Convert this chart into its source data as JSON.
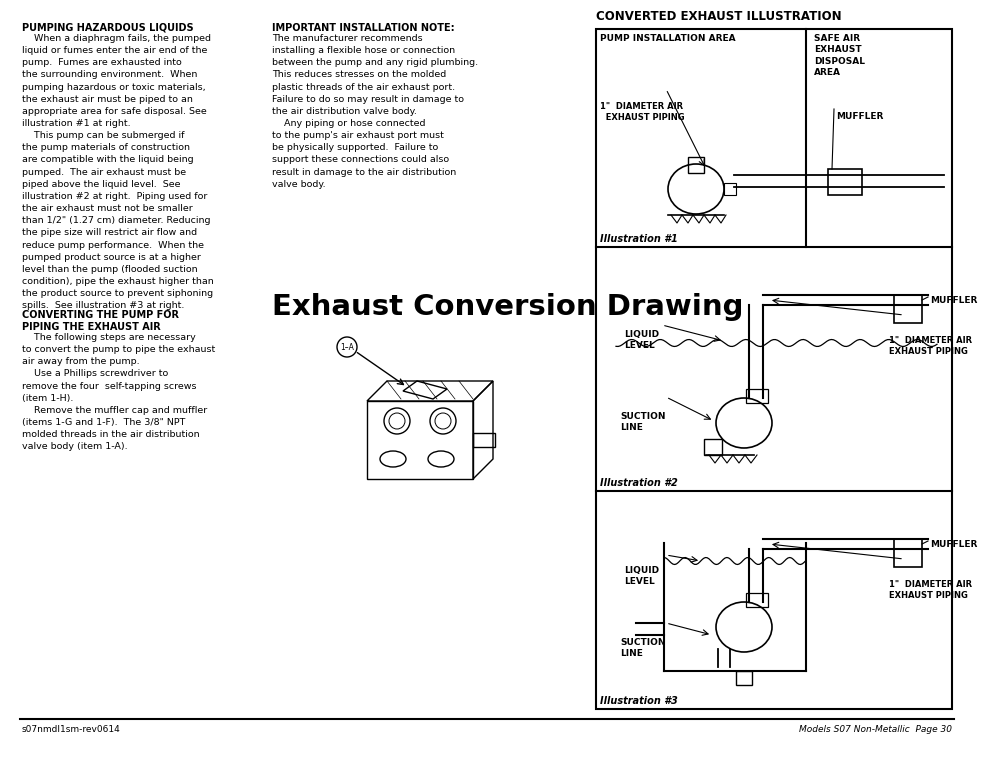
{
  "page_bg": "#ffffff",
  "title_main": "Exhaust Conversion Drawing",
  "section1_heading": "PUMPING HAZARDOUS LIQUIDS",
  "section1_body": "    When a diaphragm fails, the pumped\nliquid or fumes enter the air end of the\npump.  Fumes are exhausted into\nthe surrounding environment.  When\npumping hazardous or toxic materials,\nthe exhaust air must be piped to an\nappropriate area for safe disposal. See\nillustration #1 at right.\n    This pump can be submerged if\nthe pump materials of construction\nare compatible with the liquid being\npumped.  The air exhaust must be\npiped above the liquid level.  See\nillustration #2 at right.  Piping used for\nthe air exhaust must not be smaller\nthan 1/2\" (1.27 cm) diameter. Reducing\nthe pipe size will restrict air flow and\nreduce pump performance.  When the\npumped product source is at a higher\nlevel than the pump (flooded suction\ncondition), pipe the exhaust higher than\nthe product source to prevent siphoning\nspills.  See illustration #3 at right.",
  "section2_heading": "CONVERTING THE PUMP FOR\nPIPING THE EXHAUST AIR",
  "section2_body": "    The following steps are necessary\nto convert the pump to pipe the exhaust\nair away from the pump.\n    Use a Phillips screwdriver to\nremove the four  self-tapping screws\n(item 1-H).\n    Remove the muffler cap and muffler\n(items 1-G and 1-F).  The 3/8\" NPT\nmolded threads in the air distribution\nvalve body (item 1-A).",
  "section3_heading": "IMPORTANT INSTALLATION NOTE:",
  "section3_body": "The manufacturer recommends\ninstalling a flexible hose or connection\nbetween the pump and any rigid plumbing.\nThis reduces stresses on the molded\nplastic threads of the air exhaust port.\nFailure to do so may result in damage to\nthe air distribution valve body.\n    Any piping or hose connected\nto the pump's air exhaust port must\nbe physically supported.  Failure to\nsupport these connections could also\nresult in damage to the air distribution\nvalve body.",
  "illus_heading": "CONVERTED EXHAUST ILLUSTRATION",
  "illus1_pump_area": "PUMP INSTALLATION AREA",
  "illus1_safe_area": "SAFE AIR\nEXHAUST\nDISPOSAL\nAREA",
  "illus1_diam_pipe": "1\"  DIAMETER AIR\n  EXHAUST PIPING",
  "illus1_muffler": "MUFFLER",
  "illus1_caption": "Illustration #1",
  "illus2_muffler": "MUFFLER",
  "illus2_diam_pipe": "1\"  DIAMETER AIR\nEXHAUST PIPING",
  "illus2_liquid": "LIQUID\nLEVEL",
  "illus2_suction": "SUCTION\nLINE",
  "illus2_caption": "Illustration #2",
  "illus3_muffler": "MUFFLER",
  "illus3_diam_pipe": "1\"  DIAMETER AIR\nEXHAUST PIPING",
  "illus3_liquid": "LIQUID\nLEVEL",
  "illus3_suction": "SUCTION\nLINE",
  "illus3_caption": "Illustration #3",
  "footer_left": "s07nmdl1sm-rev0614",
  "footer_right": "Models S07 Non-Metallic  Page 30",
  "text_color": "#000000"
}
